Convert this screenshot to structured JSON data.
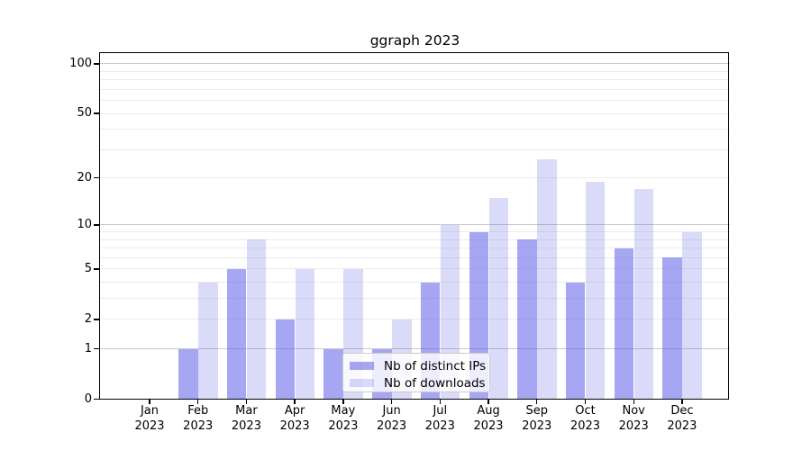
{
  "chart_data": {
    "type": "bar",
    "title": "ggraph 2023",
    "categories": [
      "Jan",
      "Feb",
      "Mar",
      "Apr",
      "May",
      "Jun",
      "Jul",
      "Aug",
      "Sep",
      "Oct",
      "Nov",
      "Dec"
    ],
    "x_year": "2023",
    "series": [
      {
        "name": "Nb of distinct IPs",
        "color": "rgba(107,107,233,0.60)",
        "values": [
          0,
          1,
          5,
          2,
          1,
          1,
          4,
          9,
          8,
          4,
          7,
          6
        ]
      },
      {
        "name": "Nb of downloads",
        "color": "rgba(107,107,233,0.25)",
        "values": [
          0,
          4,
          8,
          5,
          5,
          2,
          10,
          15,
          26,
          19,
          17,
          9
        ]
      }
    ],
    "xlabel": "",
    "ylabel": "",
    "yscale": "log1p",
    "yticks": [
      0,
      1,
      2,
      5,
      10,
      20,
      50,
      100
    ],
    "ylim": [
      0,
      116
    ],
    "grid": "on",
    "major_gridlines": [
      1,
      10,
      100
    ],
    "minor_gridlines": [
      2,
      3,
      4,
      5,
      6,
      7,
      8,
      9,
      20,
      30,
      40,
      50,
      60,
      70,
      80,
      90
    ],
    "legend": {
      "position": "lower center"
    },
    "colors": {
      "grid_major": "#c9c9c9",
      "grid_minor": "#ececec",
      "axis": "#000000",
      "text": "#000000",
      "legend_border": "#cccccc"
    }
  }
}
